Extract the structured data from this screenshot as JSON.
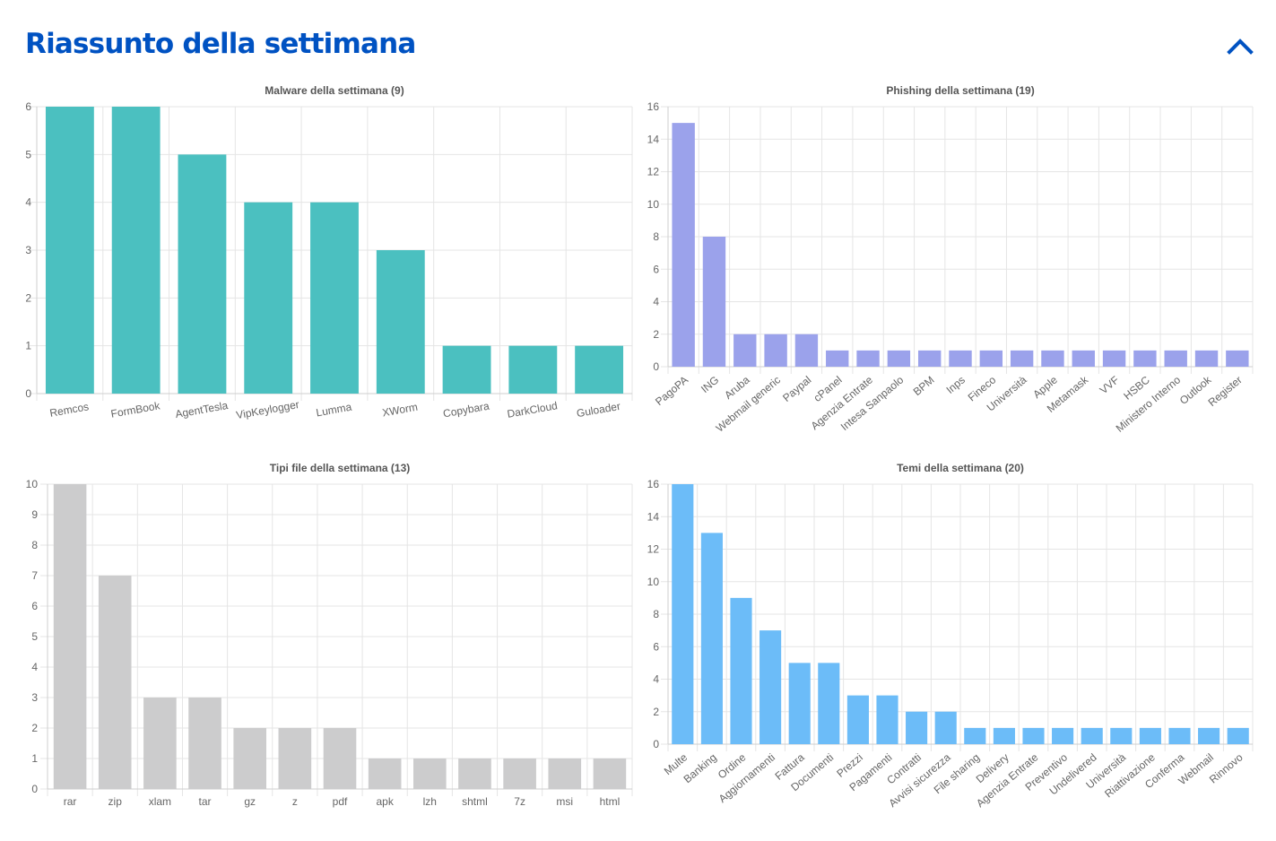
{
  "page": {
    "title": "Riassunto della settimana",
    "collapse_icon": "chevron-up-icon",
    "accent_color": "#0052c2"
  },
  "chart_data": [
    {
      "type": "bar",
      "title": "Malware della settimana (9)",
      "categories": [
        "Remcos",
        "FormBook",
        "AgentTesla",
        "VipKeylogger",
        "Lumma",
        "XWorm",
        "Copybara",
        "DarkCloud",
        "Guloader"
      ],
      "values": [
        6,
        6,
        5,
        4,
        4,
        3,
        1,
        1,
        1
      ],
      "ylim": [
        0,
        6
      ],
      "yticks": [
        0,
        1,
        2,
        3,
        4,
        5,
        6
      ],
      "color": "#4bc0c0",
      "grid": true,
      "xlabel_rotation": "slight"
    },
    {
      "type": "bar",
      "title": "Phishing della settimana (19)",
      "categories": [
        "PagoPA",
        "ING",
        "Aruba",
        "Webmail generic",
        "Paypal",
        "cPanel",
        "Agenzia Entrate",
        "Intesa Sanpaolo",
        "BPM",
        "Inps",
        "Fineco",
        "Università",
        "Apple",
        "Metamask",
        "VVF",
        "HSBC",
        "Ministero Interno",
        "Outlook",
        "Register"
      ],
      "values": [
        15,
        8,
        2,
        2,
        2,
        1,
        1,
        1,
        1,
        1,
        1,
        1,
        1,
        1,
        1,
        1,
        1,
        1,
        1
      ],
      "ylim": [
        0,
        16
      ],
      "yticks": [
        0,
        2,
        4,
        6,
        8,
        10,
        12,
        14,
        16
      ],
      "color": "#9ba2eb",
      "grid": true,
      "xlabel_rotation": "diagonal"
    },
    {
      "type": "bar",
      "title": "Tipi file della settimana (13)",
      "categories": [
        "rar",
        "zip",
        "xlam",
        "tar",
        "gz",
        "z",
        "pdf",
        "apk",
        "lzh",
        "shtml",
        "7z",
        "msi",
        "html"
      ],
      "values": [
        10,
        7,
        3,
        3,
        2,
        2,
        2,
        1,
        1,
        1,
        1,
        1,
        1
      ],
      "ylim": [
        0,
        10
      ],
      "yticks": [
        0,
        1,
        2,
        3,
        4,
        5,
        6,
        7,
        8,
        9,
        10
      ],
      "color": "#cccccd",
      "grid": true,
      "xlabel_rotation": "none"
    },
    {
      "type": "bar",
      "title": "Temi della settimana (20)",
      "categories": [
        "Multe",
        "Banking",
        "Ordine",
        "Aggiornamenti",
        "Fattura",
        "Documenti",
        "Prezzi",
        "Pagamenti",
        "Contratti",
        "Avvisi sicurezza",
        "File sharing",
        "Delivery",
        "Agenzia Entrate",
        "Preventivo",
        "Undelivered",
        "Università",
        "Riattivazione",
        "Conferma",
        "Webmail",
        "Rinnovo"
      ],
      "values": [
        16,
        13,
        9,
        7,
        5,
        5,
        3,
        3,
        2,
        2,
        1,
        1,
        1,
        1,
        1,
        1,
        1,
        1,
        1,
        1
      ],
      "ylim": [
        0,
        16
      ],
      "yticks": [
        0,
        2,
        4,
        6,
        8,
        10,
        12,
        14,
        16
      ],
      "color": "#6cbcf8",
      "grid": true,
      "xlabel_rotation": "diagonal"
    }
  ]
}
